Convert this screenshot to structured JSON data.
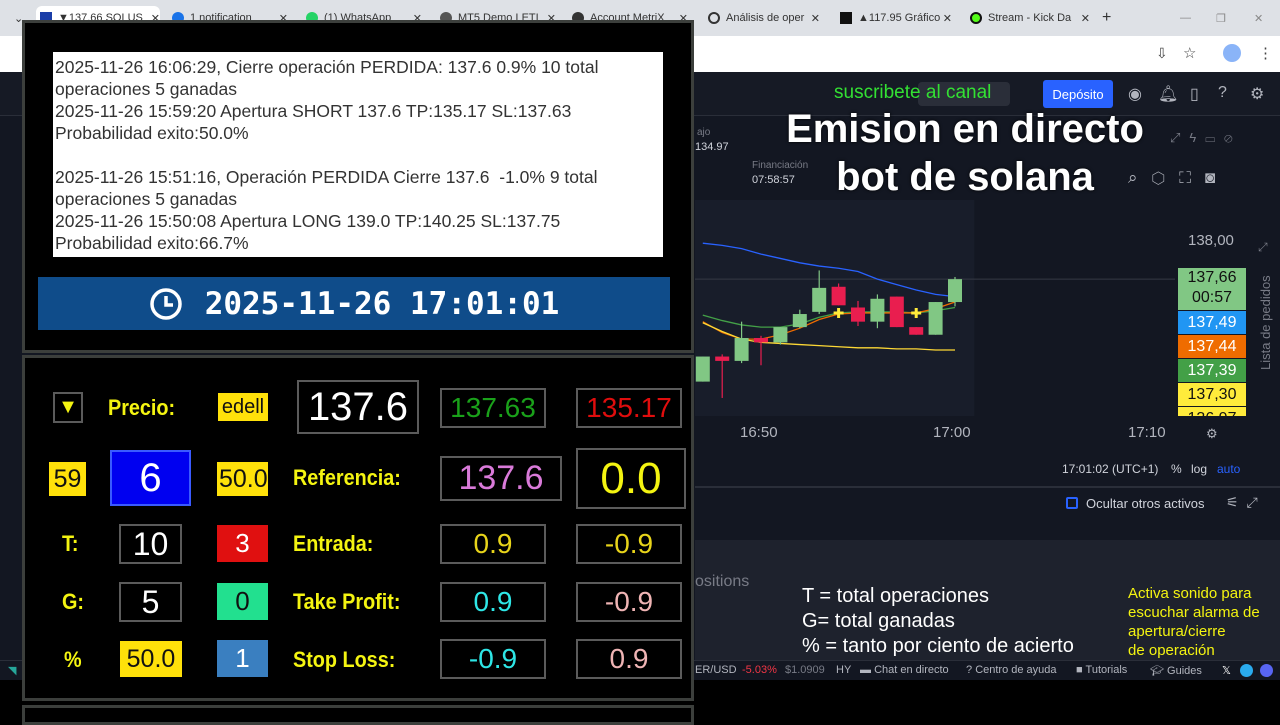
{
  "browser": {
    "tabs": [
      {
        "label": "▼137.66 SOLUS",
        "icon": "vee-icon"
      },
      {
        "label": "1 notification",
        "icon": "notification-icon"
      },
      {
        "label": "(1) WhatsApp",
        "icon": "whatsapp-icon"
      },
      {
        "label": "MT5 Demo LETI",
        "icon": "globe-icon"
      },
      {
        "label": "Account MetriX",
        "icon": "metrix-icon"
      },
      {
        "label": "Análisis de oper",
        "icon": "openai-icon"
      },
      {
        "label": "▲117.95 Gráfico",
        "icon": "chart-icon"
      },
      {
        "label": "Stream - Kick Da",
        "icon": "kick-icon"
      }
    ],
    "new_tab": "+"
  },
  "header": {
    "subscribe": "suscribete al canal",
    "deposit": "Depósito",
    "stats": [
      {
        "label": "ajo",
        "value": "134.97"
      },
      {
        "label": "Financiación",
        "value": "07:58:57"
      }
    ]
  },
  "overlay": {
    "title_line1": "Emision en directo",
    "title_line2": "bot de solana"
  },
  "log": {
    "entries": [
      "2025-11-26 16:06:29, Cierre operación PERDIDA: 137.6 0.9% 10 total operaciones 5 ganadas",
      "2025-11-26 15:59:20 Apertura SHORT 137.6 TP:135.17 SL:137.63 Probabilidad exito:50.0%",
      "",
      "2025-11-26 15:51:16, Operación PERDIDA Cierre 137.6  -1.0% 9 total operaciones 5 ganadas",
      "2025-11-26 15:50:08 Apertura LONG 139.0 TP:140.25 SL:137.75 Probabilidad exito:66.7%"
    ]
  },
  "clock": {
    "datetime": "2025-11-26 17:01:01"
  },
  "bot": {
    "direction": "▼",
    "precio_label": "Precio:",
    "mode": "edell",
    "precio": "137.6",
    "sl": "137.63",
    "tp": "135.17",
    "seconds": "59",
    "counter": "6",
    "prob": "50.0",
    "referencia_label": "Referencia:",
    "referencia": "137.6",
    "diff": "0.0",
    "t_label": "T:",
    "total": "10",
    "red_count": "3",
    "entrada_label": "Entrada:",
    "entrada": [
      "0.9",
      "-0.9"
    ],
    "g_label": "G:",
    "ganadas": "5",
    "green_count": "0",
    "tp_label": "Take Profit:",
    "take_profit": [
      "0.9",
      "-0.9"
    ],
    "pct_label": "%",
    "pct": "50.0",
    "blue_count": "1",
    "sl_label": "Stop Loss:",
    "stop_loss": [
      "-0.9",
      "0.9"
    ]
  },
  "chart": {
    "price_label": "138,00",
    "time_labels": [
      "16:50",
      "17:00",
      "17:10"
    ],
    "price_tags": [
      {
        "value": "137,66",
        "sub": "00:57",
        "color": "#81c784"
      },
      {
        "value": "137,49",
        "color": "#2196f3"
      },
      {
        "value": "137,44",
        "color": "#ef6c00"
      },
      {
        "value": "137,39",
        "color": "#43a047"
      },
      {
        "value": "137,30",
        "color": "#ffeb3b"
      },
      {
        "value": "136,97",
        "color": "#ffeb3b"
      }
    ],
    "clock": "17:01:02 (UTC+1)",
    "pct": "%",
    "log": "log",
    "auto": "auto",
    "order_list": "Lista de pedidos",
    "hide_assets": "Ocultar otros activos",
    "positions": "ositions",
    "candles": [
      {
        "t": "16:47",
        "o": 136.71,
        "h": 136.94,
        "l": 136.71,
        "c": 136.94
      },
      {
        "t": "16:48",
        "o": 136.94,
        "h": 136.96,
        "l": 136.56,
        "c": 136.9
      },
      {
        "t": "16:49",
        "o": 136.9,
        "h": 137.26,
        "l": 136.88,
        "c": 137.11
      },
      {
        "t": "16:50",
        "o": 137.11,
        "h": 137.13,
        "l": 136.86,
        "c": 137.07
      },
      {
        "t": "16:51",
        "o": 137.07,
        "h": 137.21,
        "l": 137.05,
        "c": 137.21
      },
      {
        "t": "16:52",
        "o": 137.21,
        "h": 137.37,
        "l": 137.2,
        "c": 137.33
      },
      {
        "t": "16:53",
        "o": 137.35,
        "h": 137.73,
        "l": 137.33,
        "c": 137.57
      },
      {
        "t": "16:54",
        "o": 137.58,
        "h": 137.61,
        "l": 137.41,
        "c": 137.41
      },
      {
        "t": "16:55",
        "o": 137.39,
        "h": 137.45,
        "l": 137.22,
        "c": 137.26
      },
      {
        "t": "16:56",
        "o": 137.26,
        "h": 137.51,
        "l": 137.2,
        "c": 137.47
      },
      {
        "t": "16:57",
        "o": 137.49,
        "h": 137.49,
        "l": 137.21,
        "c": 137.21
      },
      {
        "t": "16:58",
        "o": 137.21,
        "h": 137.21,
        "l": 137.14,
        "c": 137.14
      },
      {
        "t": "16:59",
        "o": 137.14,
        "h": 137.44,
        "l": 137.14,
        "c": 137.44
      },
      {
        "t": "17:00",
        "o": 137.44,
        "h": 137.67,
        "l": 137.4,
        "c": 137.65
      }
    ],
    "lines": [
      {
        "color": "#2962ff",
        "values": [
          137.98,
          137.96,
          137.93,
          137.88,
          137.84,
          137.8,
          137.77,
          137.75,
          137.72,
          137.65,
          137.6,
          137.55,
          137.51,
          137.49
        ]
      },
      {
        "color": "#43a047",
        "values": [
          137.32,
          137.27,
          137.23,
          137.21,
          137.21,
          137.24,
          137.3,
          137.34,
          137.35,
          137.35,
          137.35,
          137.34,
          137.36,
          137.39
        ]
      },
      {
        "color": "#ef6c00",
        "values": [
          137.26,
          137.16,
          137.1,
          137.1,
          137.14,
          137.2,
          137.28,
          137.33,
          137.34,
          137.34,
          137.34,
          137.34,
          137.38,
          137.44
        ]
      },
      {
        "color": "#fdd835",
        "values": [
          137.25,
          137.17,
          137.1,
          137.07,
          137.06,
          137.05,
          137.04,
          137.03,
          137.02,
          137.02,
          137.01,
          137.01,
          137.0,
          137.0
        ]
      }
    ],
    "markers": [
      "16:54",
      "16:58"
    ]
  },
  "legend": {
    "lines": [
      "T = total operaciones",
      "G= total ganadas",
      "% = tanto por ciento de acierto"
    ],
    "sound_note": [
      "Activa sonido para",
      "escuchar alarma de",
      "apertura/cierre",
      "de operación"
    ]
  },
  "status_bar": {
    "pair": "ER/USD",
    "change": "-5.03%",
    "price": "$1.0909",
    "hy": "HY",
    "links": [
      "Chat en directo",
      "Centro de ayuda",
      "Tutorials",
      "Guides"
    ]
  }
}
